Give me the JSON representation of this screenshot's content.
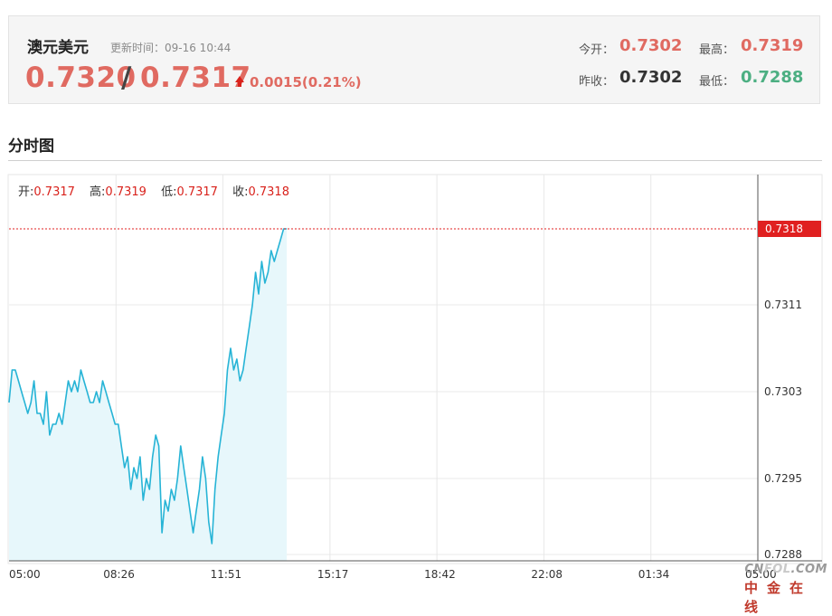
{
  "quote": {
    "name": "澳元美元",
    "update_label": "更新时间：09-16 10:44",
    "bid": "0.7320",
    "slash": "/",
    "ask": "0.7317",
    "change": "0.0015(0.21%)",
    "today_open_label": "今开：",
    "today_open": "0.7302",
    "prev_close_label": "昨收：",
    "prev_close": "0.7302",
    "high_label": "最高：",
    "high": "0.7319",
    "low_label": "最低：",
    "low": "0.7288"
  },
  "colors": {
    "up": "#e06a61",
    "down": "#4caf82",
    "line": "#27b4d6",
    "area": "#e7f7fb",
    "current_price_tag": "#e02020"
  },
  "section_title": "分时图",
  "ohlc": {
    "open_label": "开:",
    "open": "0.7317",
    "high_label": "高:",
    "high": "0.7319",
    "low_label": "低:",
    "low": "0.7317",
    "close_label": "收:",
    "close": "0.7318"
  },
  "chart_data": {
    "type": "line",
    "x_ticks": [
      "05:00",
      "08:26",
      "11:51",
      "15:17",
      "18:42",
      "22:08",
      "01:34",
      "05:00"
    ],
    "y_ticks": [
      "0.7318",
      "0.7311",
      "0.7303",
      "0.7295",
      "0.7288"
    ],
    "y_tick_values": [
      0.7318,
      0.7311,
      0.7303,
      0.7295,
      0.7288
    ],
    "ylim": [
      0.7288,
      0.7318
    ],
    "current_price": 0.7318,
    "current_price_label": "0.7318",
    "grid": true,
    "x_count": 240,
    "series": [
      {
        "values": [
          0.7302,
          0.7305,
          0.7305,
          0.7304,
          0.7303,
          0.7302,
          0.7301,
          0.7302,
          0.7304,
          0.7301,
          0.7301,
          0.73,
          0.7303,
          0.7299,
          0.73,
          0.73,
          0.7301,
          0.73,
          0.7302,
          0.7304,
          0.7303,
          0.7304,
          0.7303,
          0.7305,
          0.7304,
          0.7303,
          0.7302,
          0.7302,
          0.7303,
          0.7302,
          0.7304,
          0.7303,
          0.7302,
          0.7301,
          0.73,
          0.73,
          0.7298,
          0.7296,
          0.7297,
          0.7294,
          0.7296,
          0.7295,
          0.7297,
          0.7293,
          0.7295,
          0.7294,
          0.7297,
          0.7299,
          0.7298,
          0.729,
          0.7293,
          0.7292,
          0.7294,
          0.7293,
          0.7295,
          0.7298,
          0.7296,
          0.7294,
          0.7292,
          0.729,
          0.7292,
          0.7294,
          0.7297,
          0.7295,
          0.7291,
          0.7289,
          0.7294,
          0.7297,
          0.7299,
          0.7301,
          0.7305,
          0.7307,
          0.7305,
          0.7306,
          0.7304,
          0.7305,
          0.7307,
          0.7309,
          0.7311,
          0.7314,
          0.7312,
          0.7315,
          0.7313,
          0.7314,
          0.7316,
          0.7315,
          0.7316,
          0.7317,
          0.7318,
          0.7318
        ]
      }
    ]
  }
}
